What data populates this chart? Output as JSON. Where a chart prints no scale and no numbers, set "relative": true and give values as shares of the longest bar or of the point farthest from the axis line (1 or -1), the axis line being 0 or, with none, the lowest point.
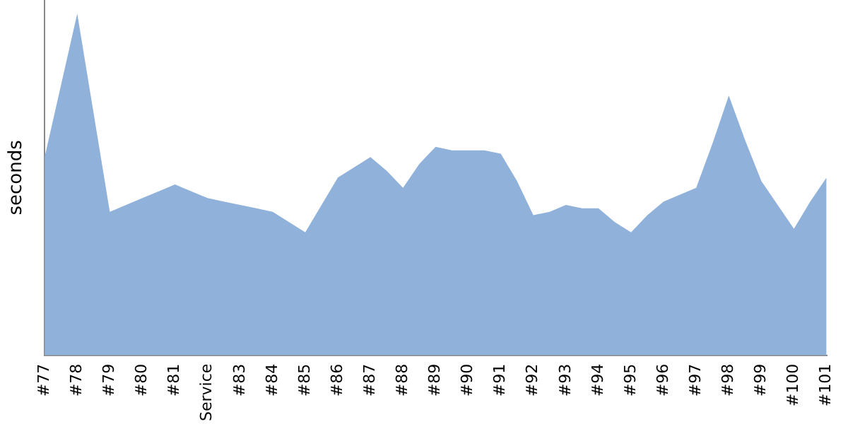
{
  "chart_data": {
    "type": "area",
    "ylabel": "seconds",
    "relative": true,
    "grid": false,
    "legend": false,
    "categories": [
      "#77",
      null,
      "#78",
      null,
      "#79",
      null,
      "#80",
      null,
      "#81",
      null,
      "Service",
      null,
      "#83",
      null,
      "#84",
      null,
      "#85",
      null,
      "#86",
      null,
      "#87",
      null,
      "#88",
      null,
      "#89",
      null,
      "#90",
      null,
      "#91",
      null,
      "#92",
      null,
      "#93",
      null,
      "#94",
      null,
      "#95",
      null,
      "#96",
      null,
      "#97",
      null,
      "#98",
      null,
      "#99",
      null,
      "#100",
      null,
      "#101"
    ],
    "series": [
      {
        "color": "#8fb1da",
        "values": [
          0.58,
          0.79,
          1,
          0.71,
          0.42,
          0.44,
          0.46,
          0.48,
          0.5,
          0.48,
          0.46,
          0.45,
          0.44,
          0.43,
          0.42,
          0.39,
          0.36,
          0.44,
          0.52,
          0.55,
          0.58,
          0.54,
          0.49,
          0.56,
          0.61,
          0.6,
          0.6,
          0.6,
          0.59,
          0.51,
          0.41,
          0.42,
          0.44,
          0.43,
          0.43,
          0.39,
          0.36,
          0.41,
          0.45,
          0.47,
          0.49,
          0.62,
          0.76,
          0.63,
          0.51,
          0.44,
          0.37,
          0.45,
          0.52
        ]
      }
    ]
  }
}
